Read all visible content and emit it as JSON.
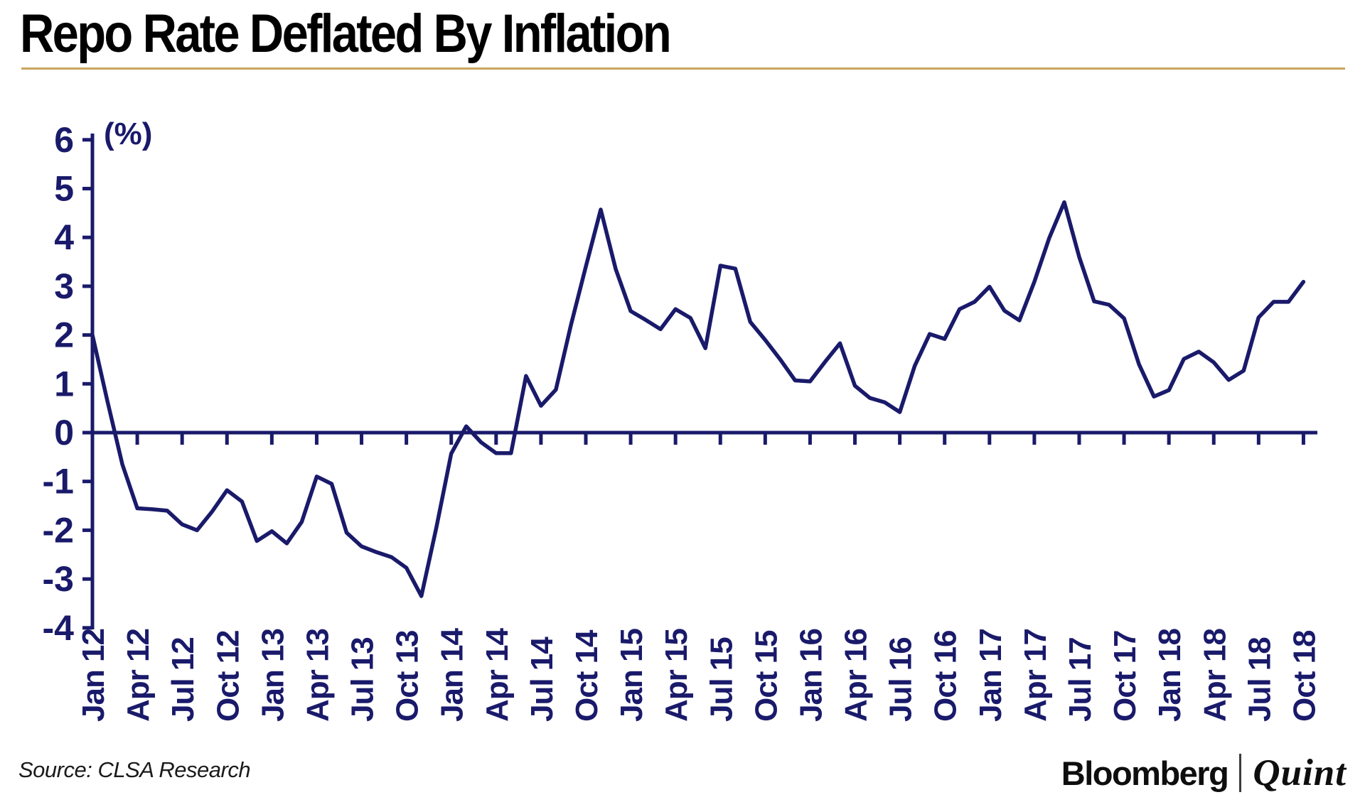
{
  "page": {
    "title": "Repo Rate Deflated By Inflation",
    "source_note": "Source: CLSA Research",
    "logo": {
      "bloomberg": "Bloomberg",
      "separator": "|",
      "quint": "Quint"
    }
  },
  "colors": {
    "navy": "#1A1A6B",
    "separator_gold": "#C9A55C",
    "title_black": "#000000",
    "logo_black": "#0E0E0E"
  },
  "chart_data": {
    "type": "line",
    "title": "Repo Rate Deflated By Inflation",
    "unit_label": "(%)",
    "ylabel": "(%)",
    "xlabel": "",
    "ylim": [
      -4,
      6
    ],
    "y_ticks": [
      6,
      5,
      4,
      3,
      2,
      1,
      0,
      -1,
      -2,
      -3,
      -4
    ],
    "grid": false,
    "legend_position": "none",
    "x_tick_labels": [
      "Jan 12",
      "Apr 12",
      "Jul 12",
      "Oct 12",
      "Jan 13",
      "Apr 13",
      "Jul 13",
      "Oct 13",
      "Jan 14",
      "Apr 14",
      "Jul 14",
      "Oct 14",
      "Jan 15",
      "Apr 15",
      "Jul 15",
      "Oct 15",
      "Jan 16",
      "Apr 16",
      "Jul 16",
      "Oct 16",
      "Jan 17",
      "Apr 17",
      "Jul 17",
      "Oct 17",
      "Jan 18",
      "Apr 18",
      "Jul 18",
      "Oct 18"
    ],
    "months_per_tick": 3,
    "series": [
      {
        "name": "Repo rate deflated by inflation",
        "color": "#1A1A6B",
        "first_point": "Jan 12",
        "last_point": "Oct 18",
        "frequency": "monthly",
        "values": [
          2.0,
          0.65,
          -0.65,
          -1.55,
          -1.57,
          -1.6,
          -1.88,
          -2.0,
          -1.62,
          -1.18,
          -1.41,
          -2.22,
          -2.02,
          -2.27,
          -1.83,
          -0.9,
          -1.05,
          -2.05,
          -2.33,
          -2.45,
          -2.55,
          -2.77,
          -3.35,
          -1.95,
          -0.43,
          0.13,
          -0.2,
          -0.42,
          -0.42,
          1.16,
          0.55,
          0.88,
          2.2,
          3.4,
          4.57,
          3.35,
          2.49,
          2.31,
          2.12,
          2.53,
          2.35,
          1.73,
          3.42,
          3.36,
          2.27,
          1.9,
          1.5,
          1.07,
          1.05,
          1.45,
          1.83,
          0.96,
          0.71,
          0.62,
          0.42,
          1.37,
          2.02,
          1.92,
          2.53,
          2.68,
          2.99,
          2.5,
          2.3,
          3.09,
          3.99,
          4.72,
          3.6,
          2.69,
          2.62,
          2.34,
          1.4,
          0.74,
          0.87,
          1.51,
          1.66,
          1.44,
          1.08,
          1.27,
          2.36,
          2.68,
          2.68,
          3.09
        ]
      }
    ]
  }
}
